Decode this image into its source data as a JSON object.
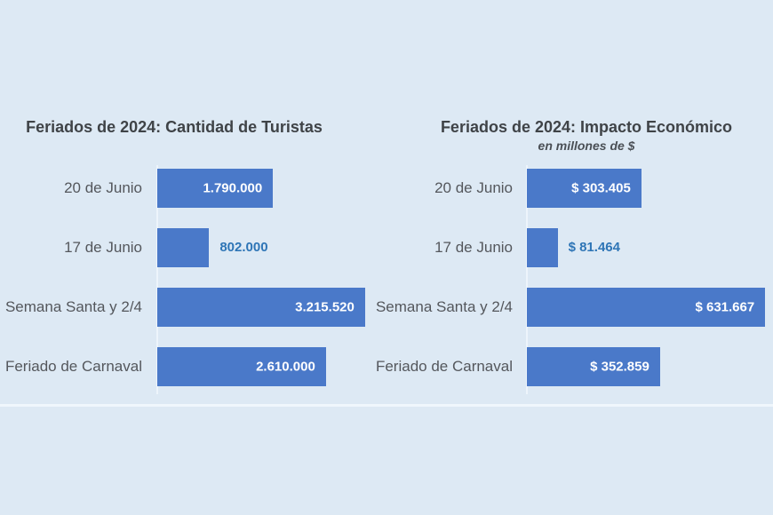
{
  "page": {
    "background": "#dde9f4",
    "title_color": "#3f4347",
    "subtitle_color": "#4a4f55",
    "label_color": "#54575c",
    "value_inside_color": "#ffffff",
    "value_outside_color": "#2e75b6",
    "axis_line_color": "#edf4fb",
    "divider_color": "#eff6fc"
  },
  "chart_data": [
    {
      "type": "bar",
      "orientation": "horizontal",
      "title": "Feriados de 2024: Cantidad de Turistas",
      "categories": [
        "20 de Junio",
        "17 de Junio",
        "Semana Santa y 2/4",
        "Feriado de Carnaval"
      ],
      "values": [
        1790000,
        802000,
        3215520,
        2610000
      ],
      "value_labels": [
        "1.790.000",
        "802.000",
        "3.215.520",
        "2.610.000"
      ],
      "value_label_inside": [
        true,
        false,
        true,
        true
      ],
      "axis_max": 3300000,
      "xlim": [
        0,
        3300000
      ],
      "bar_color": "#4a79c9",
      "grid": false,
      "legend": false
    },
    {
      "type": "bar",
      "orientation": "horizontal",
      "title": "Feriados de 2024: Impacto Económico",
      "subtitle": "en millones de $",
      "categories": [
        "20 de Junio",
        "17 de Junio",
        "Semana Santa y 2/4",
        "Feriado de Carnaval"
      ],
      "values": [
        303405,
        81464,
        631667,
        352859
      ],
      "value_labels": [
        "$ 303.405",
        "$ 81.464",
        "$ 631.667",
        "$ 352.859"
      ],
      "value_label_inside": [
        true,
        false,
        true,
        true
      ],
      "axis_max": 650000,
      "xlim": [
        0,
        650000
      ],
      "bar_color": "#4a79c9",
      "grid": false,
      "legend": false
    }
  ]
}
